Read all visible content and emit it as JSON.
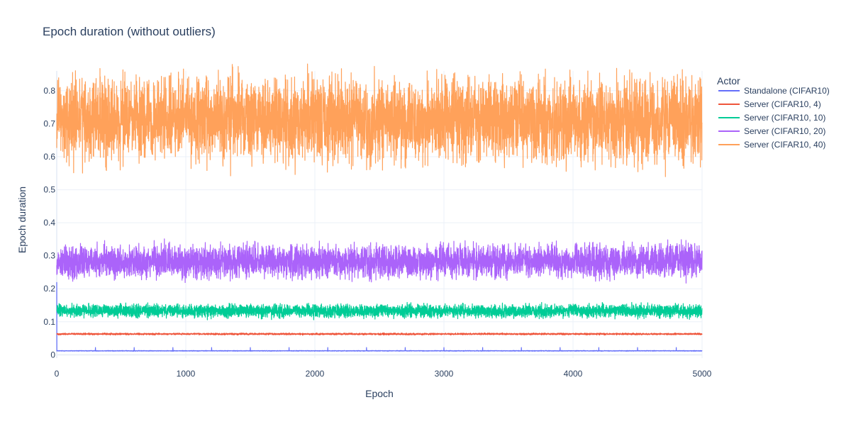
{
  "chart_data": {
    "type": "line",
    "title": "Epoch duration (without outliers)",
    "xlabel": "Epoch",
    "ylabel": "Epoch duration",
    "xlim": [
      0,
      5000
    ],
    "ylim": [
      -0.01,
      0.86
    ],
    "x_ticks": [
      0,
      1000,
      2000,
      3000,
      4000,
      5000
    ],
    "x_tick_labels": [
      "0",
      "1000",
      "2000",
      "3000",
      "4000",
      "5000"
    ],
    "y_ticks": [
      0,
      0.1,
      0.2,
      0.3,
      0.4,
      0.5,
      0.6,
      0.7,
      0.8
    ],
    "y_tick_labels": [
      "0",
      "0.1",
      "0.2",
      "0.3",
      "0.4",
      "0.5",
      "0.6",
      "0.7",
      "0.8"
    ],
    "grid": true,
    "legend_title": "Actor",
    "legend_position": "right",
    "x": {
      "start": 0,
      "end": 5000,
      "step": 1
    },
    "series": [
      {
        "name": "Standalone (CIFAR10)",
        "color": "#636efa",
        "mean": 0.012,
        "noise_amplitude": 0.0015,
        "initial_value": 0.22,
        "spike_value": 0.022,
        "spike_epochs": [
          300,
          600,
          900,
          1200,
          1500,
          1800,
          2100,
          2400,
          2700,
          3000,
          3300,
          3600,
          3900,
          4200,
          4500,
          4800
        ]
      },
      {
        "name": "Server (CIFAR10, 4)",
        "color": "#ef553b",
        "mean": 0.063,
        "noise_amplitude": 0.004
      },
      {
        "name": "Server (CIFAR10, 10)",
        "color": "#00cc96",
        "mean": 0.133,
        "noise_amplitude": 0.03
      },
      {
        "name": "Server (CIFAR10, 20)",
        "color": "#ab63fa",
        "mean": 0.283,
        "noise_amplitude": 0.075
      },
      {
        "name": "Server (CIFAR10, 40)",
        "color": "#ffa15a",
        "mean": 0.71,
        "noise_amplitude": 0.19
      }
    ]
  }
}
